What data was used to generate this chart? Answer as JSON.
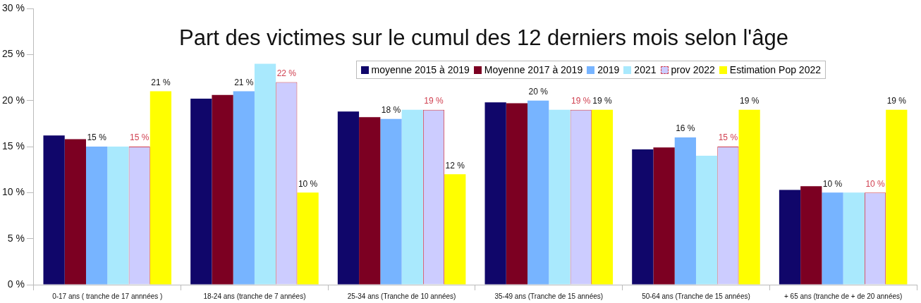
{
  "chart_data": {
    "type": "bar",
    "title": "Part des victimes sur le cumul des 12 derniers mois selon l'âge",
    "categories": [
      "0-17 ans ( tranche de 17 annnées )",
      "18-24 ans (tranche de 7 années)",
      "25-34 ans (Tranche de 10 années)",
      "35-49 ans (Tranche de 15 années)",
      "50-64 ans (Tranche de 15 années)",
      "+ 65 ans (tranche de + de 20 années)"
    ],
    "series": [
      {
        "name": "moyenne 2015 à 2019",
        "color": "#10066a",
        "values": [
          16.2,
          20.2,
          18.8,
          19.8,
          14.7,
          10.3
        ]
      },
      {
        "name": "Moyenne 2017 à 2019",
        "color": "#7c0022",
        "values": [
          15.8,
          20.6,
          18.2,
          19.7,
          14.9,
          10.7
        ]
      },
      {
        "name": "2019",
        "color": "#77b4ff",
        "values": [
          15,
          21,
          18,
          20,
          16,
          10
        ],
        "value_labels": [
          "15 %",
          "21 %",
          "18 %",
          "20 %",
          "16 %",
          "10 %"
        ]
      },
      {
        "name": "2021",
        "color": "#a9e9fd",
        "values": [
          15,
          24,
          19,
          19,
          14,
          10
        ]
      },
      {
        "name": "prov 2022",
        "color": "#ccccff",
        "line_style": "dashed",
        "values": [
          15,
          22,
          19,
          19,
          15,
          10
        ],
        "value_labels": [
          "15 %",
          "22 %",
          "19 %",
          "19 %",
          "15 %",
          "10 %"
        ]
      },
      {
        "name": "Estimation  Pop 2022",
        "color": "#ffff00",
        "values": [
          21,
          10,
          12,
          19,
          19,
          19
        ],
        "value_labels": [
          "21 %",
          "10 %",
          "12 %",
          "19 %",
          "19 %",
          "19 %"
        ]
      }
    ],
    "ylim": [
      0,
      30
    ],
    "yticks": [
      {
        "value": 0,
        "label": "0 %"
      },
      {
        "value": 5,
        "label": "5 %"
      },
      {
        "value": 10,
        "label": "10 %"
      },
      {
        "value": 15,
        "label": "15 %"
      },
      {
        "value": 20,
        "label": "20 %"
      },
      {
        "value": 25,
        "label": "25 %"
      },
      {
        "value": 30,
        "label": "30 %"
      }
    ],
    "grid": false,
    "legend": "top right"
  }
}
